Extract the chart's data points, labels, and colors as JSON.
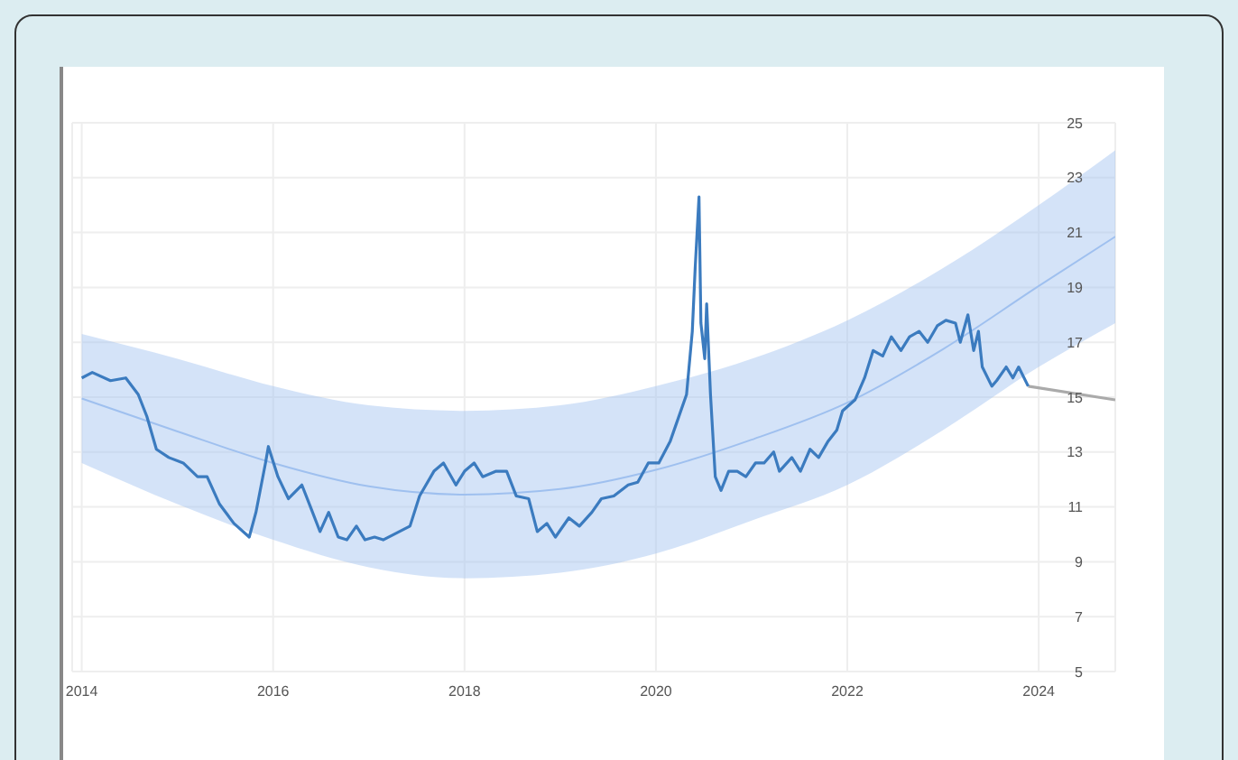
{
  "chart_data": {
    "type": "line",
    "xlim": [
      2013.9,
      2024.8
    ],
    "xticks": [
      2014,
      2016,
      2018,
      2020,
      2022,
      2024
    ],
    "ylim": [
      5,
      25
    ],
    "yticks": [
      5,
      7,
      9,
      11,
      13,
      15,
      17,
      19,
      21,
      23,
      25
    ],
    "grid": true,
    "marker": "none",
    "line_style": "solid",
    "series": [
      {
        "color": "#9fc0ef",
        "x": [
          2014,
          2015,
          2016,
          2017,
          2018,
          2019,
          2020,
          2021,
          2022,
          2023,
          2024,
          2024.8
        ],
        "values": [
          14.95,
          13.75,
          12.6,
          11.75,
          11.45,
          11.65,
          12.35,
          13.45,
          14.8,
          16.75,
          19.05,
          20.85
        ],
        "lower": [
          12.6,
          11.1,
          9.8,
          8.8,
          8.4,
          8.6,
          9.3,
          10.5,
          11.8,
          13.8,
          16.1,
          17.7
        ],
        "upper": [
          17.3,
          16.4,
          15.4,
          14.7,
          14.5,
          14.7,
          15.4,
          16.4,
          17.8,
          19.7,
          22,
          24
        ]
      },
      {
        "color": "#aaaaaa",
        "x": [
          2023.89,
          2024.8
        ],
        "values": [
          15.4,
          14.9
        ]
      },
      {
        "color": "#3b7bbf",
        "x": [
          2014,
          2014.11,
          2014.3,
          2014.46,
          2014.59,
          2014.68,
          2014.78,
          2014.91,
          2015.06,
          2015.21,
          2015.31,
          2015.44,
          2015.59,
          2015.75,
          2015.82,
          2015.92,
          2015.95,
          2016.05,
          2016.16,
          2016.3,
          2016.39,
          2016.49,
          2016.58,
          2016.68,
          2016.77,
          2016.87,
          2016.96,
          2017.06,
          2017.15,
          2017.43,
          2017.53,
          2017.68,
          2017.78,
          2017.91,
          2018,
          2018.1,
          2018.19,
          2018.33,
          2018.44,
          2018.54,
          2018.67,
          2018.76,
          2018.86,
          2018.95,
          2019.09,
          2019.2,
          2019.33,
          2019.43,
          2019.56,
          2019.71,
          2019.81,
          2019.92,
          2020.03,
          2020.15,
          2020.22,
          2020.32,
          2020.38,
          2020.41,
          2020.45,
          2020.47,
          2020.51,
          2020.53,
          2020.57,
          2020.62,
          2020.68,
          2020.76,
          2020.85,
          2020.94,
          2021.04,
          2021.13,
          2021.23,
          2021.29,
          2021.42,
          2021.51,
          2021.61,
          2021.7,
          2021.8,
          2021.89,
          2021.95,
          2022.08,
          2022.18,
          2022.27,
          2022.37,
          2022.46,
          2022.56,
          2022.65,
          2022.75,
          2022.84,
          2022.94,
          2023.03,
          2023.13,
          2023.18,
          2023.26,
          2023.32,
          2023.37,
          2023.41,
          2023.51,
          2023.56,
          2023.66,
          2023.73,
          2023.79,
          2023.89
        ],
        "values": [
          15.7,
          15.9,
          15.6,
          15.7,
          15.1,
          14.3,
          13.1,
          12.8,
          12.6,
          12.1,
          12.1,
          11.1,
          10.4,
          9.9,
          10.8,
          12.6,
          13.2,
          12.1,
          11.3,
          11.8,
          11,
          10.1,
          10.8,
          9.9,
          9.8,
          10.3,
          9.8,
          9.9,
          9.8,
          10.3,
          11.4,
          12.3,
          12.6,
          11.8,
          12.3,
          12.6,
          12.1,
          12.3,
          12.3,
          11.4,
          11.3,
          10.1,
          10.4,
          9.9,
          10.6,
          10.3,
          10.8,
          11.3,
          11.4,
          11.8,
          11.9,
          12.6,
          12.6,
          13.4,
          14.1,
          15.1,
          17.4,
          19.7,
          22.3,
          17.7,
          16.4,
          18.4,
          15.1,
          12.1,
          11.6,
          12.3,
          12.3,
          12.1,
          12.6,
          12.6,
          13,
          12.3,
          12.8,
          12.3,
          13.1,
          12.8,
          13.4,
          13.8,
          14.5,
          14.9,
          15.7,
          16.7,
          16.5,
          17.2,
          16.7,
          17.2,
          17.4,
          17,
          17.6,
          17.8,
          17.7,
          17,
          18,
          16.7,
          17.4,
          16.1,
          15.4,
          15.6,
          16.1,
          15.7,
          16.1,
          15.4
        ]
      }
    ]
  }
}
